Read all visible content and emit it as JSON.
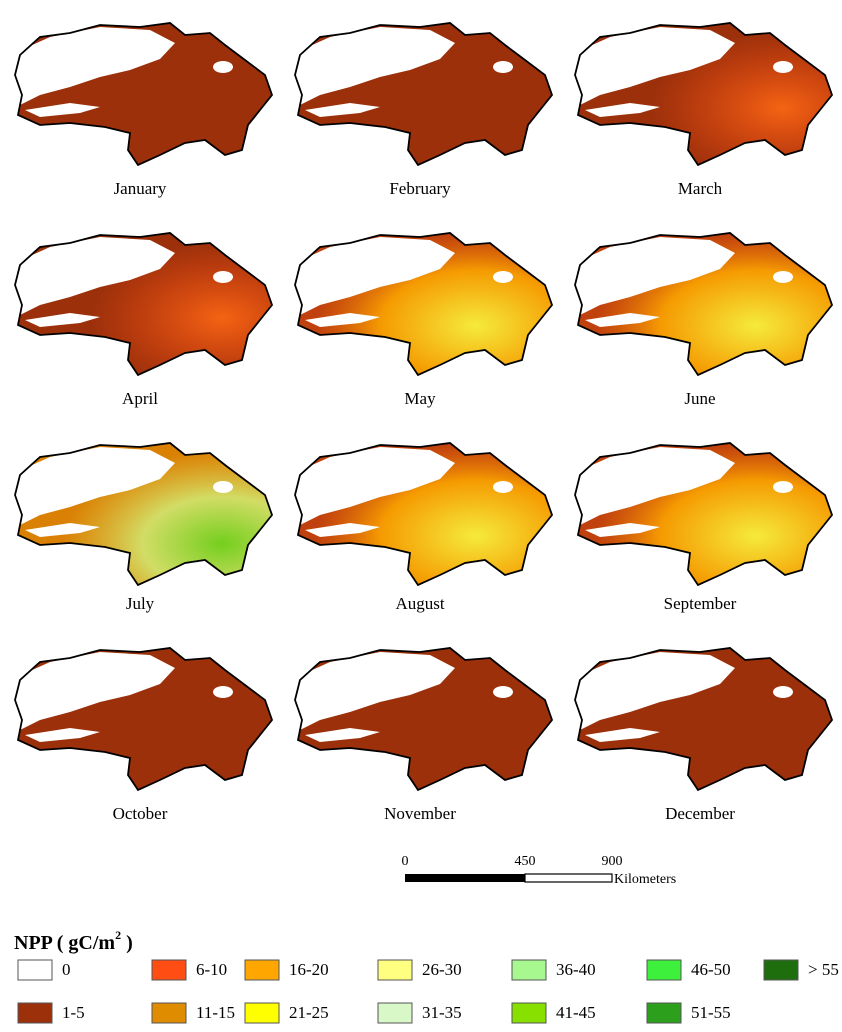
{
  "panels": [
    {
      "label": "January"
    },
    {
      "label": "February"
    },
    {
      "label": "March"
    },
    {
      "label": "April"
    },
    {
      "label": "May"
    },
    {
      "label": "June"
    },
    {
      "label": "July"
    },
    {
      "label": "August"
    },
    {
      "label": "September"
    },
    {
      "label": "October"
    },
    {
      "label": "November"
    },
    {
      "label": "December"
    }
  ],
  "scale_bar": {
    "ticks": [
      "0",
      "450",
      "900"
    ],
    "unit": "Kilometers"
  },
  "legend": {
    "title": "NPP ( gC/m",
    "title_superscript": "2",
    "title_end": " )",
    "rows": [
      [
        {
          "label": "0",
          "color": "#ffffff"
        },
        {
          "label": "6-10",
          "color": "#ff4d14"
        },
        {
          "label": "16-20",
          "color": "#ffa600"
        },
        {
          "label": "26-30",
          "color": "#ffff80"
        },
        {
          "label": "36-40",
          "color": "#a8f890"
        },
        {
          "label": "46-50",
          "color": "#3cf03c"
        },
        {
          "label": "> 55",
          "color": "#1e6e0e"
        }
      ],
      [
        {
          "label": "1-5",
          "color": "#9b300b"
        },
        {
          "label": "11-15",
          "color": "#e08c00"
        },
        {
          "label": "21-25",
          "color": "#ffff00"
        },
        {
          "label": "31-35",
          "color": "#d8f8c8"
        },
        {
          "label": "41-45",
          "color": "#88e000"
        },
        {
          "label": "51-55",
          "color": "#2ca01c"
        }
      ]
    ]
  }
}
